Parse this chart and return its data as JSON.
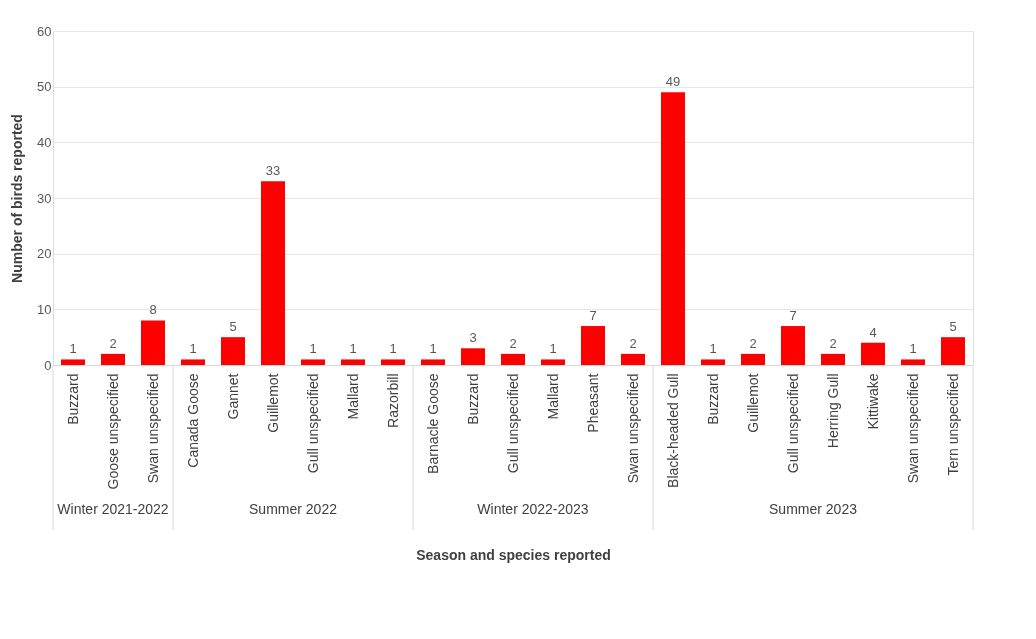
{
  "chart_data": {
    "type": "bar",
    "xlabel": "Season and species reported",
    "ylabel": "Number of birds reported",
    "categories": [
      "Buzzard",
      "Goose unspecified",
      "Swan unspecified",
      "Canada Goose",
      "Gannet",
      "Guillemot",
      "Gull unspecified",
      "Mallard",
      "Razorbill",
      "Barnacle Goose",
      "Buzzard",
      "Gull unspecified",
      "Mallard",
      "Pheasant",
      "Swan unspecified",
      "Black-headed Gull",
      "Buzzard",
      "Guillemot",
      "Gull unspecified",
      "Herring Gull",
      "Kittiwake",
      "Swan unspecified",
      "Tern unspecified"
    ],
    "series": [
      {
        "color": "#ff0000",
        "values": [
          1,
          2,
          8,
          null,
          null,
          null,
          null,
          null,
          null,
          null,
          null,
          null,
          null,
          null,
          null,
          null,
          null,
          null,
          null,
          null,
          null,
          null,
          null
        ]
      },
      {
        "color": "#ff0000",
        "values": [
          null,
          null,
          null,
          1,
          5,
          33,
          1,
          1,
          1,
          null,
          null,
          null,
          null,
          null,
          null,
          null,
          null,
          null,
          null,
          null,
          null,
          null,
          null
        ]
      },
      {
        "color": "#ff0000",
        "values": [
          null,
          null,
          null,
          null,
          null,
          null,
          null,
          null,
          null,
          1,
          3,
          2,
          1,
          7,
          2,
          null,
          null,
          null,
          null,
          null,
          null,
          null,
          null
        ]
      },
      {
        "color": "#ff0000",
        "values": [
          null,
          null,
          null,
          null,
          null,
          null,
          null,
          null,
          null,
          null,
          null,
          null,
          null,
          null,
          null,
          49,
          1,
          2,
          7,
          2,
          4,
          1,
          5
        ]
      }
    ],
    "annotations": [
      "Winter 2021-2022",
      "Summer 2022",
      "Winter 2022-2023",
      "Summer 2023"
    ],
    "data_labels": true,
    "grid": "y",
    "ylim": [
      0,
      60
    ],
    "yticks": [
      0,
      10,
      20,
      30,
      40,
      50,
      60
    ]
  }
}
